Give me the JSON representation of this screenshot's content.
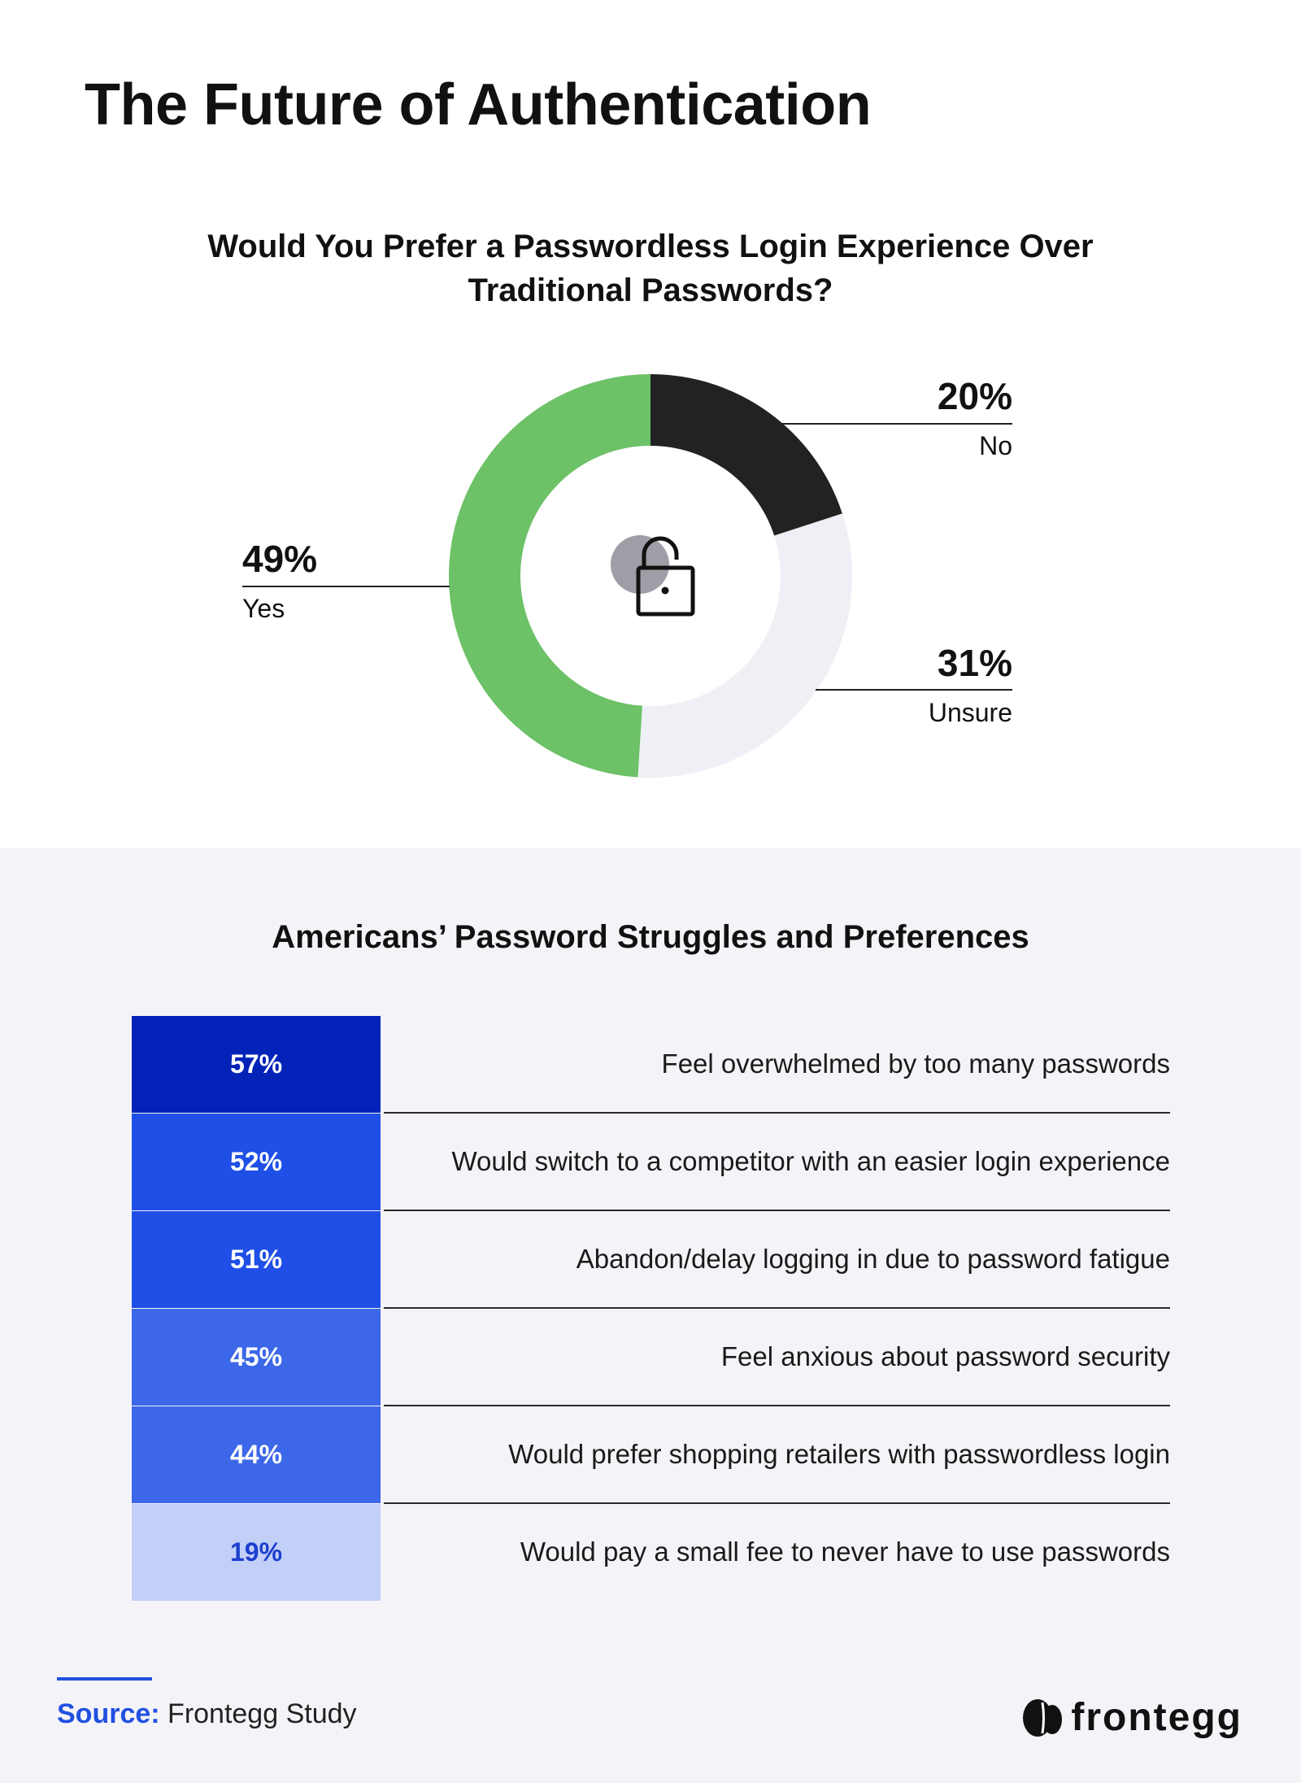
{
  "header": {
    "title": "The Future of Authentication"
  },
  "chart_data": [
    {
      "type": "pie",
      "variant": "donut",
      "title_lines": [
        "Would You Prefer a Passwordless Login Experience Over",
        "Traditional Passwords?"
      ],
      "slices": [
        {
          "label": "No",
          "value": 20,
          "display": "20%",
          "color": "#222222"
        },
        {
          "label": "Unsure",
          "value": 31,
          "display": "31%",
          "color": "#eff0f5"
        },
        {
          "label": "Yes",
          "value": 49,
          "display": "49%",
          "color": "#6dc167"
        }
      ],
      "center_icon": "unlocked-padlock-icon",
      "legend": "none"
    },
    {
      "type": "table",
      "title": "Americans’ Password Struggles and Preferences",
      "rows": [
        {
          "value": "57%",
          "label": "Feel overwhelmed by too many passwords",
          "color": "#0323b8",
          "text_color": "#ffffff"
        },
        {
          "value": "52%",
          "label": "Would switch to a competitor with an easier login experience",
          "color": "#1f4fe6",
          "text_color": "#ffffff"
        },
        {
          "value": "51%",
          "label": "Abandon/delay logging in due to password fatigue",
          "color": "#1f4fe6",
          "text_color": "#ffffff"
        },
        {
          "value": "45%",
          "label": "Feel anxious about password security",
          "color": "#3c67e8",
          "text_color": "#ffffff"
        },
        {
          "value": "44%",
          "label": "Would prefer shopping retailers with passwordless login",
          "color": "#3c67e8",
          "text_color": "#ffffff"
        },
        {
          "value": "19%",
          "label": "Would pay a small fee to never have to use passwords",
          "color": "#c2cff7",
          "text_color": "#1b3fcf"
        }
      ]
    }
  ],
  "footer": {
    "source_label": "Source:",
    "source_value": "Frontegg Study",
    "brand_name": "frontegg",
    "brand_icon": "frontegg-logo-icon"
  }
}
